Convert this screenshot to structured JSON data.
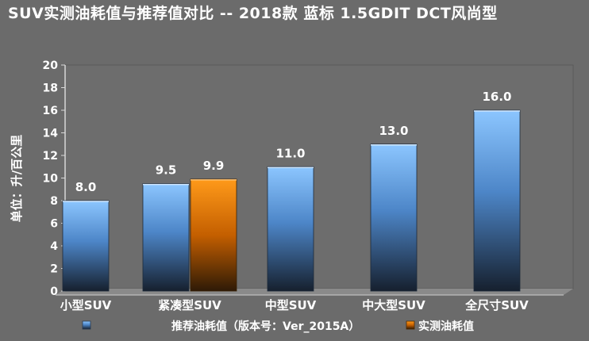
{
  "chart_data": {
    "type": "bar",
    "title": "SUV实测油耗值与推荐值对比 -- 2018款 蓝标 1.5GDIT DCT风尚型",
    "xlabel": "",
    "ylabel": "单位：升/百公里",
    "ylim": [
      0,
      20
    ],
    "yticks": [
      0,
      2,
      4,
      6,
      8,
      10,
      12,
      14,
      16,
      18,
      20
    ],
    "grid": false,
    "legend_position": "bottom",
    "categories": [
      "小型SUV",
      "紧凑型SUV",
      "中型SUV",
      "中大型SUV",
      "全尺寸SUV"
    ],
    "series": [
      {
        "name": "推荐油耗值（版本号：Ver_2015A）",
        "color": "#6fb3ff",
        "values": [
          8.0,
          9.5,
          11.0,
          13.0,
          16.0
        ],
        "labels": [
          "8.0",
          "9.5",
          "11.0",
          "13.0",
          "16.0"
        ]
      },
      {
        "name": "实测油耗值",
        "color": "#ff8a00",
        "values": [
          null,
          9.9,
          null,
          null,
          null
        ],
        "labels": [
          "",
          "9.9",
          "",
          "",
          ""
        ]
      }
    ]
  }
}
